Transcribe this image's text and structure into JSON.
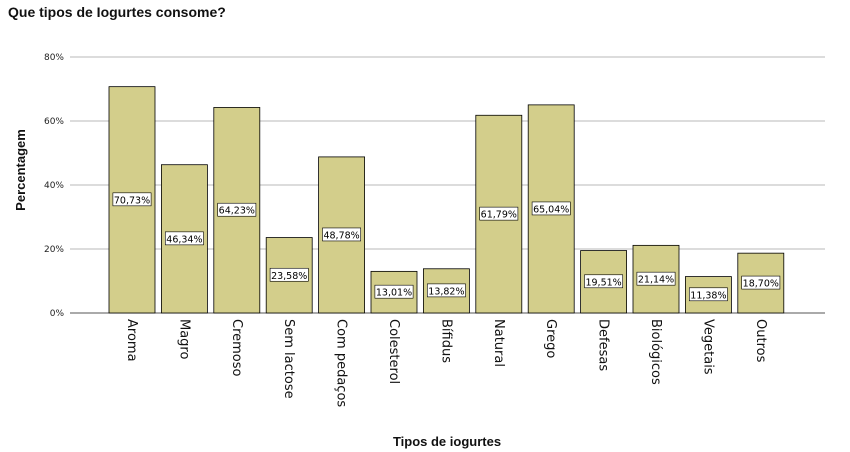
{
  "chart_data": {
    "type": "bar",
    "title": "Que tipos de Iogurtes consome?",
    "xlabel": "Tipos de iogurtes",
    "ylabel": "Percentagem",
    "ylim": [
      0,
      80
    ],
    "yticks": [
      "0%",
      "20%",
      "40%",
      "60%",
      "80%"
    ],
    "categories": [
      "Aroma",
      "Magro",
      "Cremoso",
      "Sem lactose",
      "Com pedaços",
      "Colesterol",
      "Bífidus",
      "Natural",
      "Grego",
      "Defesas",
      "Biológicos",
      "Vegetais",
      "Outros"
    ],
    "values": [
      70.73,
      46.34,
      64.23,
      23.58,
      48.78,
      13.01,
      13.82,
      61.79,
      65.04,
      19.51,
      21.14,
      11.38,
      18.7
    ],
    "labels": [
      "70,73%",
      "46,34%",
      "64,23%",
      "23,58%",
      "48,78%",
      "13,01%",
      "13,82%",
      "61,79%",
      "65,04%",
      "19,51%",
      "21,14%",
      "11,38%",
      "18,70%"
    ],
    "bar_color": "#d3ce8b",
    "grid": true
  }
}
